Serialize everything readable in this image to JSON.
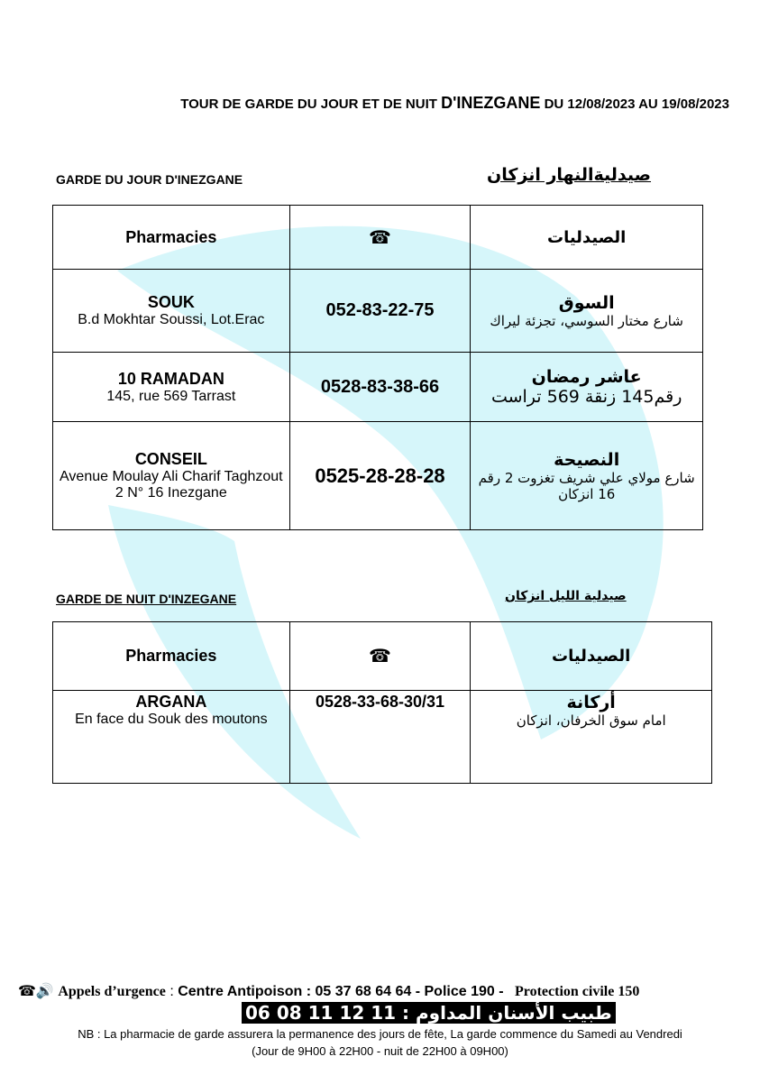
{
  "header": {
    "title_prefix": "TOUR DE GARDE DU JOUR ET DE NUIT ",
    "title_city": "D'INEZGANE",
    "title_suffix": " DU 12/08/2023 AU 19/08/2023"
  },
  "day": {
    "label_fr": "GARDE DU JOUR D'INEZGANE",
    "label_ar": "صيدليةالنهار انزكان",
    "columns": {
      "fr": "Pharmacies",
      "phone_icon": "telephone-icon",
      "ar": "الصيدليات"
    },
    "rows": [
      {
        "name": "SOUK",
        "address": "B.d Mokhtar Soussi, Lot.Erac",
        "phone": "052-83-22-75",
        "name_ar": "السوق",
        "address_ar": "شارع مختار السوسي، تجزئة ليراك"
      },
      {
        "name": "10 RAMADAN",
        "address": "145, rue 569 Tarrast",
        "phone": "0528-83-38-66",
        "name_ar": "عاشر رمضان",
        "address_ar": "رقم145 زنقة 569 تراست"
      },
      {
        "name": "CONSEIL",
        "address": "Avenue Moulay Ali Charif Taghzout 2 N° 16 Inezgane",
        "phone": "0525-28-28-28",
        "name_ar": "النصيحة",
        "address_ar": "شارع مولاي علي شريف تغزوت 2 رقم 16 انزكان"
      }
    ]
  },
  "night": {
    "label_fr": "GARDE DE NUIT D'INZEGANE",
    "label_ar": "صيدلية الليل انزكان",
    "columns": {
      "fr": "Pharmacies",
      "phone_icon": "telephone-icon",
      "ar": "الصيدليات"
    },
    "rows": [
      {
        "name": "ARGANA",
        "address": "En face du Souk des moutons",
        "phone": "0528-33-68-30/31",
        "name_ar": "أركانة",
        "address_ar": "امام سوق الخرفان، انزكان"
      }
    ]
  },
  "footer": {
    "emergency_label": "Appels d’urgence",
    "emergency_sep": " : ",
    "antipoison": "Centre Antipoison : 05 37 68 64 64 -  Police 190  -",
    "civil": "Protection civile 150",
    "dentist": "طبيب الأسنان المداوم : 11 12 11 08 06",
    "nb": "NB : La pharmacie de garde assurera la permanence des jours de fête, La garde commence du Samedi au Vendredi (Jour de 9H00 à 22H00 - nuit de 22H00 à 09H00)"
  },
  "colors": {
    "watermark": "#d6f6fa"
  }
}
